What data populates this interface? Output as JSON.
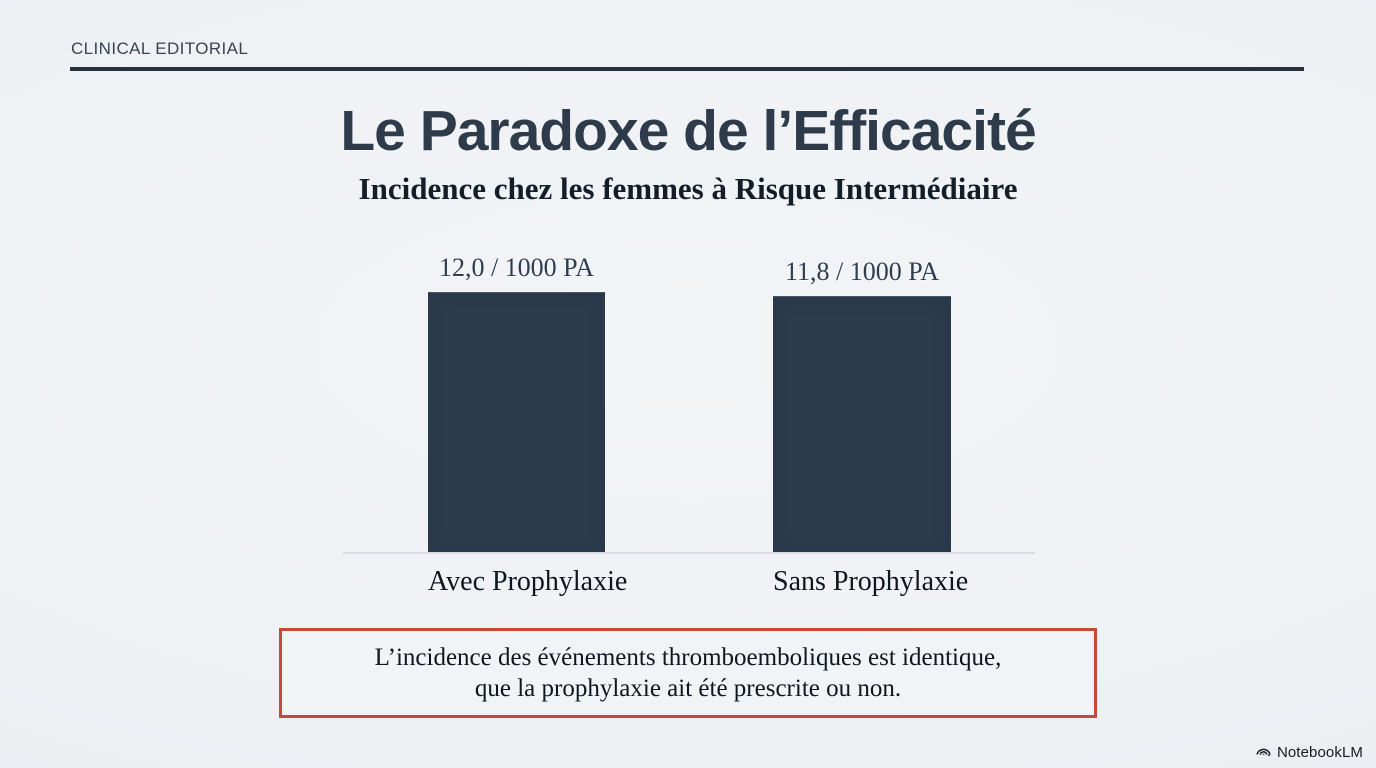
{
  "page": {
    "eyebrow": "CLINICAL EDITORIAL",
    "title": "Le Paradoxe de l’Efficacité",
    "subtitle": "Incidence chez les femmes à Risque Intermédiaire"
  },
  "chart_data": {
    "type": "bar",
    "categories": [
      "Avec Prophylaxie",
      "Sans Prophylaxie"
    ],
    "values": [
      12.0,
      11.8
    ],
    "value_labels": [
      "12,0 / 1000 PA",
      "11,8 / 1000 PA"
    ],
    "unit": "/ 1000 PA",
    "title": "Incidence chez les femmes à Risque Intermédiaire",
    "xlabel": "",
    "ylabel": "",
    "ylim": [
      0,
      12.6
    ],
    "grid": false,
    "legend": "none",
    "bar_color": "#2c3b4d",
    "baseline_color": "#d9dce0"
  },
  "callout": {
    "line1": "L’incidence des événements thromboemboliques est identique,",
    "line2": "que la prophylaxie ait été prescrite ou non.",
    "border_color": "#c7493a"
  },
  "watermark": {
    "label": "NotebookLM"
  },
  "colors": {
    "background": "#eef1f4",
    "title": "#2d3b4b",
    "header_rule": "#27313d",
    "text": "#10161d"
  }
}
